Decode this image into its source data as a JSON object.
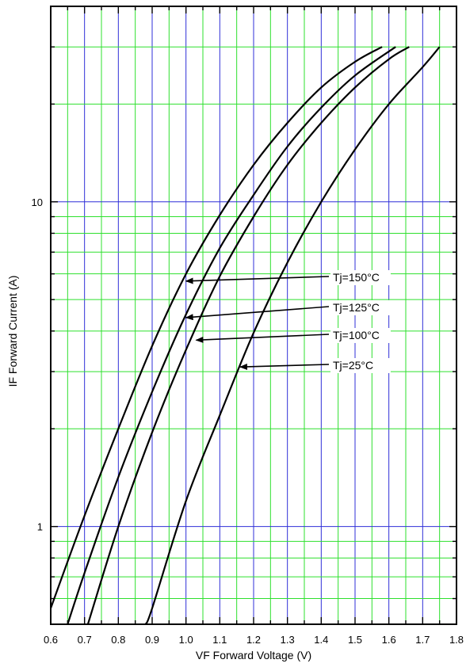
{
  "chart_data": {
    "type": "line",
    "title": "",
    "xlabel": "VF   Forward Voltage  (V)",
    "ylabel": "IF   Forward Current  (A)",
    "xlim": [
      0.6,
      1.8
    ],
    "ylim": [
      0.5,
      40
    ],
    "y_scale": "log",
    "grid": true,
    "x_ticks": [
      "0.6",
      "0.7",
      "0.8",
      "0.9",
      "1.0",
      "1.1",
      "1.2",
      "1.3",
      "1.4",
      "1.5",
      "1.6",
      "1.7",
      "1.8"
    ],
    "y_ticks": [
      "1",
      "10"
    ],
    "series": [
      {
        "name": "Tj=150°C",
        "x": [
          0.6,
          0.7,
          0.8,
          0.9,
          1.0,
          1.1,
          1.2,
          1.3,
          1.4,
          1.5,
          1.58
        ],
        "y": [
          0.56,
          1.08,
          2.0,
          3.6,
          6.0,
          9.1,
          13.0,
          17.5,
          22.5,
          27.0,
          30.0
        ]
      },
      {
        "name": "Tj=125°C",
        "x": [
          0.65,
          0.7,
          0.8,
          0.9,
          1.0,
          1.1,
          1.2,
          1.3,
          1.4,
          1.5,
          1.62
        ],
        "y": [
          0.5,
          0.72,
          1.42,
          2.6,
          4.5,
          7.2,
          10.5,
          14.8,
          19.5,
          24.5,
          30.0
        ]
      },
      {
        "name": "Tj=100°C",
        "x": [
          0.71,
          0.8,
          0.9,
          1.0,
          1.1,
          1.2,
          1.3,
          1.4,
          1.5,
          1.6,
          1.66
        ],
        "y": [
          0.5,
          1.0,
          1.95,
          3.5,
          5.9,
          9.0,
          13.0,
          17.5,
          22.5,
          27.5,
          30.0
        ]
      },
      {
        "name": "Tj=25°C",
        "x": [
          0.88,
          0.9,
          1.0,
          1.1,
          1.2,
          1.3,
          1.4,
          1.5,
          1.6,
          1.7,
          1.75
        ],
        "y": [
          0.5,
          0.56,
          1.2,
          2.2,
          3.95,
          6.5,
          10.0,
          14.5,
          20.0,
          26.0,
          30.0
        ]
      }
    ],
    "annotations": [
      {
        "text": "Tj=150°C",
        "x": 1.0,
        "y": 5.7
      },
      {
        "text": "Tj=125°C",
        "x": 1.0,
        "y": 4.4
      },
      {
        "text": "Tj=100°C",
        "x": 1.03,
        "y": 3.75
      },
      {
        "text": "Tj=25°C",
        "x": 1.16,
        "y": 3.1
      }
    ]
  }
}
